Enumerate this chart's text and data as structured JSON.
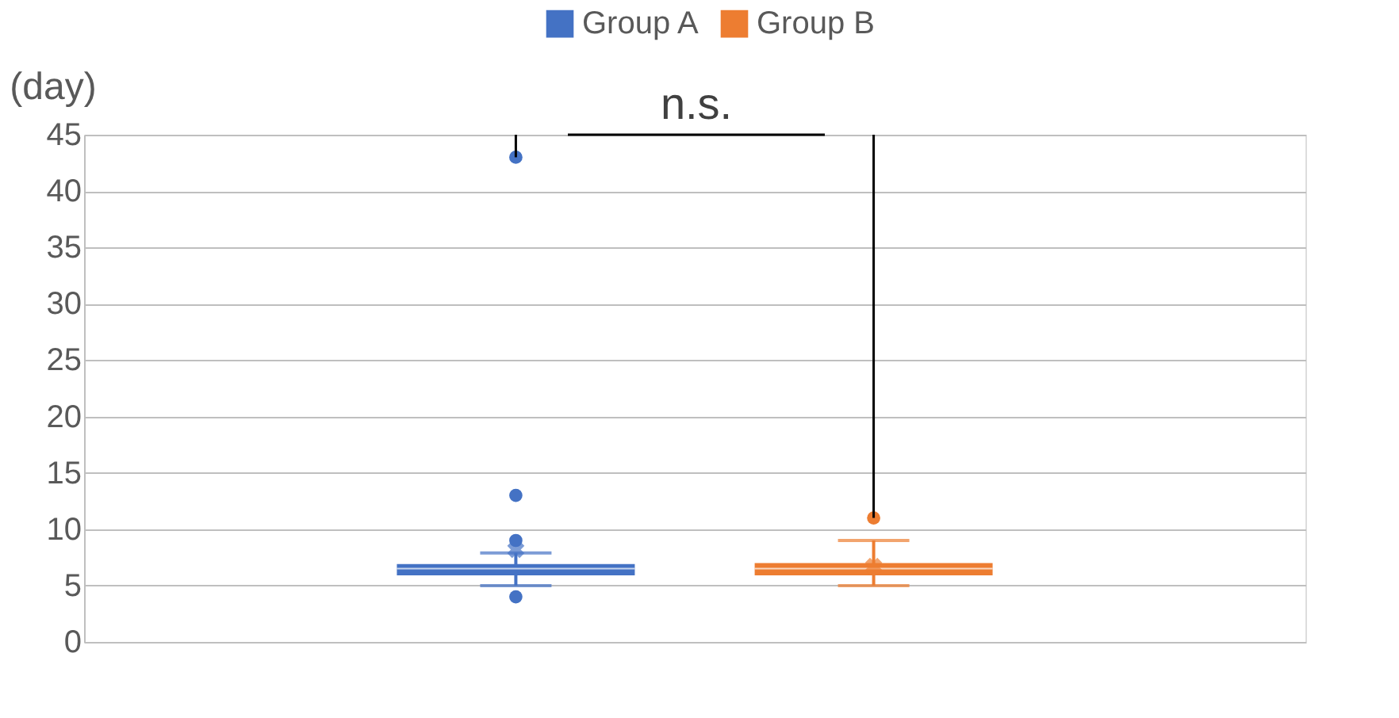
{
  "chart_data": {
    "type": "box",
    "ylabel": "(day)",
    "categories": [
      null
    ],
    "series": [
      {
        "name": "Group A",
        "color": "#4472c4",
        "boxes": [
          {
            "low": 5,
            "q1": 5.9,
            "median": 6.5,
            "q3": 6.9,
            "high": 7.9,
            "mean": 8.2,
            "outliers": [
              43,
              13,
              9,
              4
            ]
          }
        ]
      },
      {
        "name": "Group B",
        "color": "#ed7d31",
        "boxes": [
          {
            "low": 5,
            "q1": 5.9,
            "median": 6.5,
            "q3": 7,
            "high": 9,
            "mean": 6.7,
            "outliers": [
              11
            ]
          }
        ]
      }
    ],
    "ylim": [
      0,
      45
    ],
    "yticks": [
      0,
      5,
      10,
      15,
      20,
      25,
      30,
      35,
      40,
      45
    ],
    "grid": "y",
    "legend": "top",
    "tick_labels": "y",
    "marker": "circle",
    "annotations": [
      "n.s."
    ]
  }
}
